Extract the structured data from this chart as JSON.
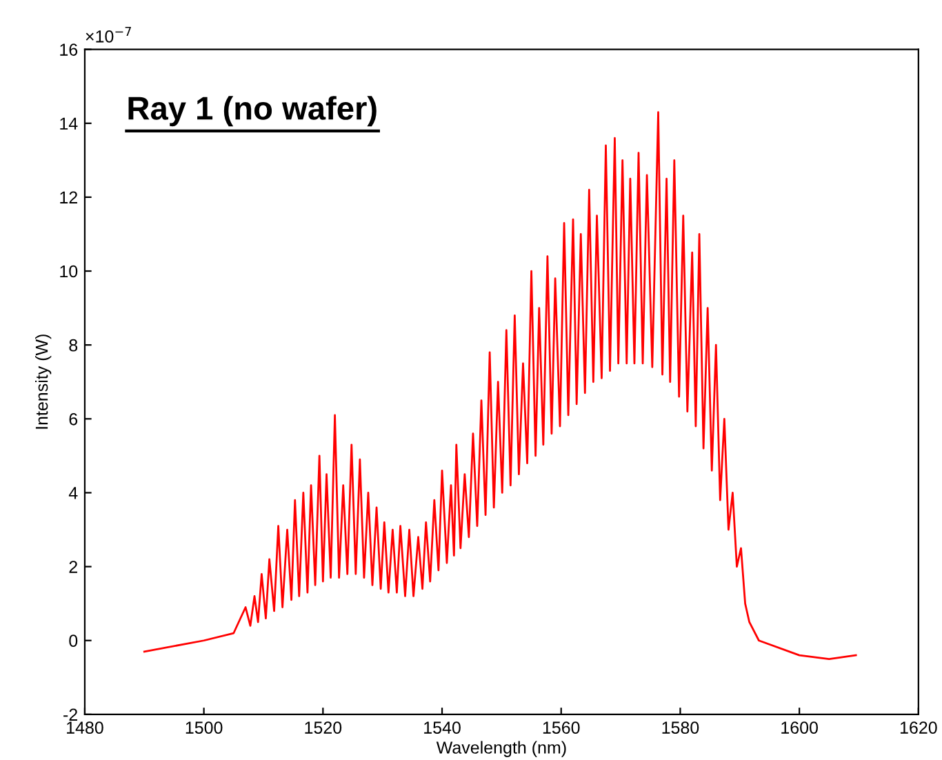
{
  "chart_data": {
    "type": "line",
    "title": "Ray 1 (no wafer)",
    "xlabel": "Wavelength (nm)",
    "ylabel": "Intensity (W)",
    "annotations": [
      "×10$^{−7}$"
    ],
    "xlim": [
      1480,
      1620
    ],
    "xticks": [
      1480,
      1500,
      1520,
      1540,
      1560,
      1580,
      1600,
      1620
    ],
    "ylim": [
      -2,
      16
    ],
    "yticks": [
      -2,
      0,
      2,
      4,
      6,
      8,
      10,
      12,
      14,
      16
    ],
    "x": [
      1490,
      1500,
      1505,
      1507,
      1507.8,
      1508.5,
      1509.1,
      1509.7,
      1510.4,
      1511,
      1511.8,
      1512.5,
      1513.2,
      1514,
      1514.7,
      1515.3,
      1516,
      1516.7,
      1517.4,
      1518,
      1518.7,
      1519.4,
      1520,
      1520.6,
      1521.3,
      1522,
      1522.7,
      1523.4,
      1524.1,
      1524.8,
      1525.5,
      1526.2,
      1526.9,
      1527.6,
      1528.3,
      1529,
      1529.7,
      1530.3,
      1531,
      1531.7,
      1532.4,
      1533,
      1533.8,
      1534.5,
      1535.2,
      1536,
      1536.7,
      1537.3,
      1538,
      1538.7,
      1539.4,
      1540,
      1540.8,
      1541.5,
      1542,
      1542.4,
      1543.1,
      1543.8,
      1544.5,
      1545.2,
      1545.9,
      1546.6,
      1547.3,
      1548,
      1548.7,
      1549.4,
      1550.1,
      1550.8,
      1551.5,
      1552.2,
      1552.9,
      1553.6,
      1554.3,
      1555,
      1555.7,
      1556.3,
      1557,
      1557.7,
      1558.4,
      1559,
      1559.8,
      1560.5,
      1561.2,
      1562,
      1562.6,
      1563.3,
      1564,
      1564.7,
      1565.4,
      1566,
      1566.8,
      1567.5,
      1568.2,
      1569,
      1569.6,
      1570.3,
      1571,
      1571.6,
      1572.3,
      1573,
      1573.7,
      1574.4,
      1575.3,
      1576.3,
      1577,
      1577.7,
      1578.3,
      1579,
      1579.8,
      1580.5,
      1581.2,
      1582,
      1582.6,
      1583.2,
      1583.9,
      1584.6,
      1585.3,
      1586,
      1586.7,
      1587.4,
      1588.1,
      1588.8,
      1589.5,
      1590.2,
      1590.9,
      1591.6,
      1593.2,
      1600,
      1605,
      1609.5
    ],
    "series": [
      {
        "color": "#ff0000",
        "values": [
          -0.3,
          0.0,
          0.2,
          0.9,
          0.4,
          1.2,
          0.5,
          1.8,
          0.6,
          2.2,
          0.8,
          3.1,
          0.9,
          3.0,
          1.1,
          3.8,
          1.2,
          4.0,
          1.3,
          4.2,
          1.5,
          5.0,
          1.6,
          4.5,
          1.7,
          6.1,
          1.7,
          4.2,
          1.8,
          5.3,
          1.8,
          4.9,
          1.7,
          4.0,
          1.5,
          3.6,
          1.4,
          3.2,
          1.3,
          3.0,
          1.3,
          3.1,
          1.2,
          3.0,
          1.2,
          2.8,
          1.4,
          3.2,
          1.6,
          3.8,
          1.9,
          4.6,
          2.1,
          4.2,
          2.3,
          5.3,
          2.5,
          4.5,
          2.8,
          5.6,
          3.1,
          6.5,
          3.4,
          7.8,
          3.6,
          7.0,
          4.0,
          8.4,
          4.2,
          8.8,
          4.5,
          7.5,
          4.8,
          10.0,
          5.0,
          9.0,
          5.3,
          10.4,
          5.6,
          9.8,
          5.8,
          11.3,
          6.1,
          11.4,
          6.4,
          11.0,
          6.7,
          12.2,
          7.0,
          11.5,
          7.1,
          13.4,
          7.3,
          13.6,
          7.5,
          13.0,
          7.5,
          12.5,
          7.5,
          13.2,
          7.5,
          12.6,
          7.4,
          14.3,
          7.2,
          12.5,
          7.0,
          13.0,
          6.6,
          11.5,
          6.2,
          10.5,
          5.8,
          11.0,
          5.2,
          9.0,
          4.6,
          8.0,
          3.8,
          6.0,
          3.0,
          4.0,
          2.0,
          2.5,
          1.0,
          0.5,
          0.0,
          -0.4,
          -0.5,
          -0.4
        ]
      }
    ]
  }
}
